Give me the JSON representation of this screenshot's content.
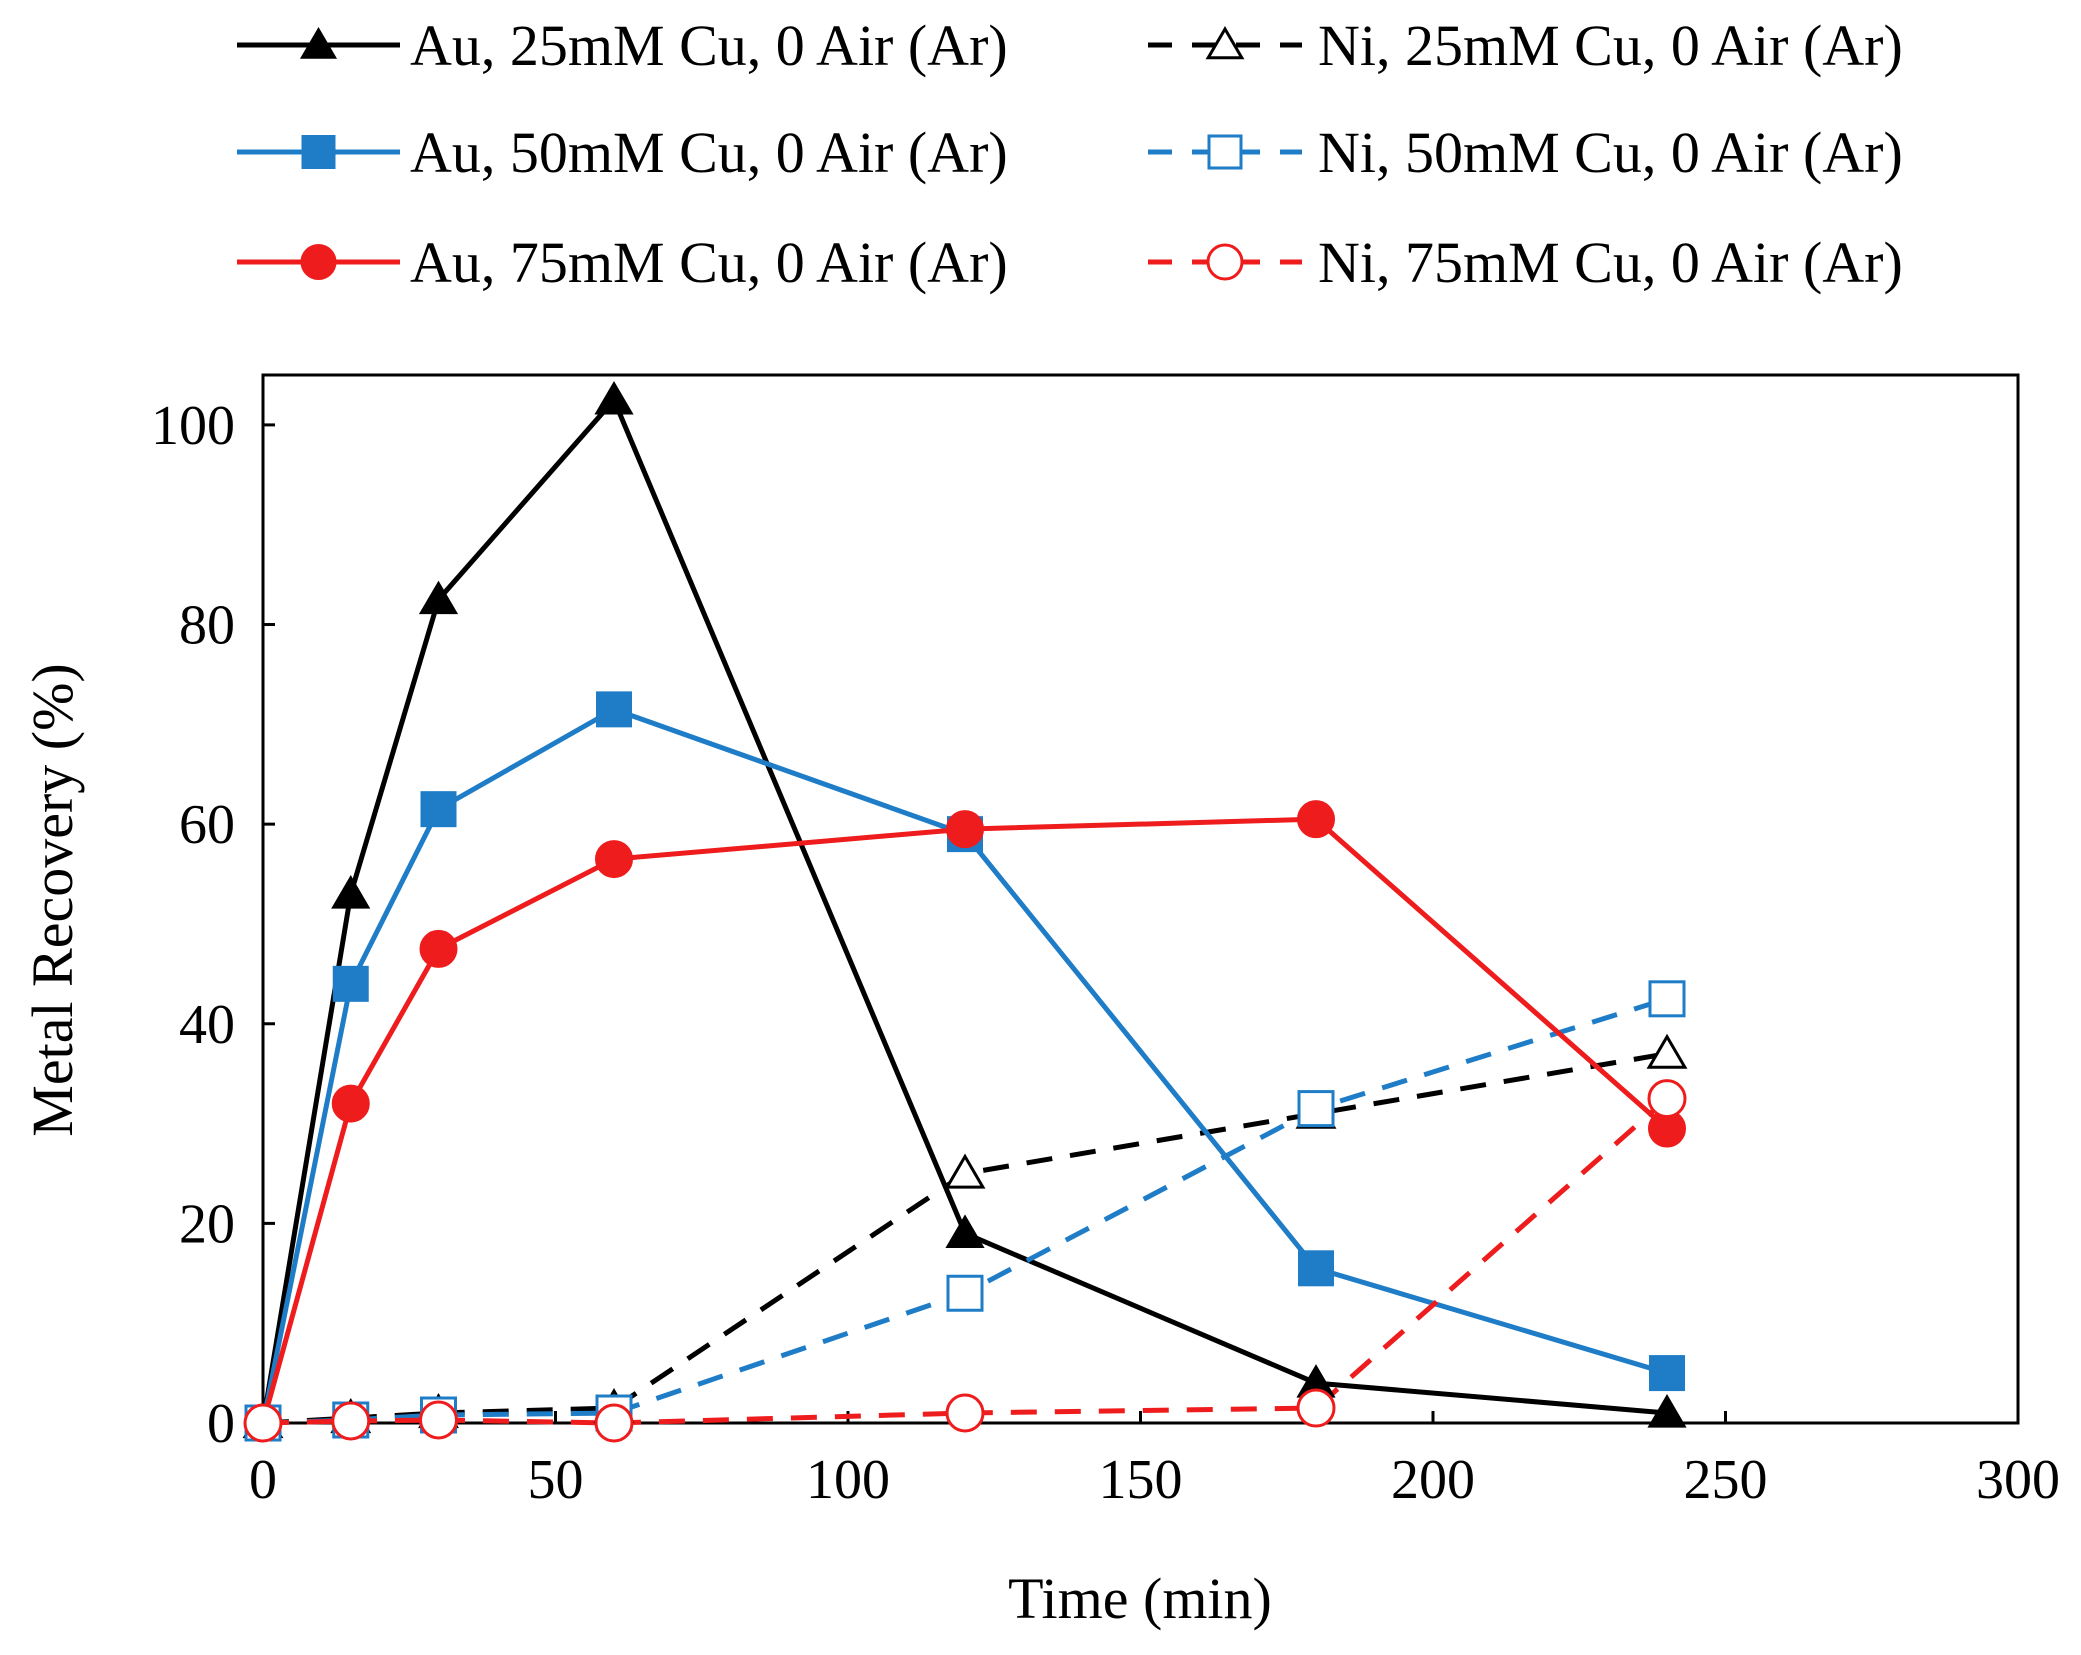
{
  "chart_data": {
    "type": "line",
    "title": "",
    "xlabel": "Time (min)",
    "ylabel": "Metal Recovery (%)",
    "xlim": [
      0,
      300
    ],
    "ylim": [
      0,
      105
    ],
    "xticks": [
      0,
      50,
      100,
      150,
      200,
      250,
      300
    ],
    "yticks": [
      0,
      20,
      40,
      60,
      80,
      100
    ],
    "grid": false,
    "legend_position": "top",
    "series": [
      {
        "name": "Au, 25mM Cu, 0 Air (Ar)",
        "color": "#000000",
        "dash": "solid",
        "marker": "triangle",
        "filled": true,
        "x": [
          0,
          15,
          30,
          60,
          120,
          180,
          240
        ],
        "y": [
          0,
          53,
          82.5,
          102.5,
          19,
          4,
          1
        ]
      },
      {
        "name": "Ni, 25mM Cu, 0 Air (Ar)",
        "color": "#000000",
        "dash": "dashed",
        "marker": "triangle",
        "filled": false,
        "x": [
          0,
          15,
          30,
          60,
          120,
          180,
          240
        ],
        "y": [
          0,
          0.5,
          1,
          1.5,
          25,
          31,
          37
        ]
      },
      {
        "name": "Au, 50mM Cu, 0 Air (Ar)",
        "color": "#1F7DC8",
        "dash": "solid",
        "marker": "square",
        "filled": true,
        "x": [
          0,
          15,
          30,
          60,
          120,
          180,
          240
        ],
        "y": [
          0,
          44,
          61.5,
          71.5,
          59,
          15.5,
          5
        ]
      },
      {
        "name": "Ni, 50mM Cu, 0 Air (Ar)",
        "color": "#1F7DC8",
        "dash": "dashed",
        "marker": "square",
        "filled": false,
        "x": [
          0,
          15,
          30,
          60,
          120,
          180,
          240
        ],
        "y": [
          0,
          0.3,
          0.8,
          1,
          13,
          31.5,
          42.5
        ]
      },
      {
        "name": "Au, 75mM Cu, 0 Air (Ar)",
        "color": "#EE1C1C",
        "dash": "solid",
        "marker": "circle",
        "filled": true,
        "x": [
          0,
          15,
          30,
          60,
          120,
          180,
          240
        ],
        "y": [
          0,
          32,
          47.5,
          56.5,
          59.5,
          60.5,
          29.5
        ]
      },
      {
        "name": "Ni, 75mM Cu, 0 Air (Ar)",
        "color": "#EE1C1C",
        "dash": "dashed",
        "marker": "circle",
        "filled": false,
        "x": [
          0,
          15,
          30,
          60,
          120,
          180,
          240
        ],
        "y": [
          0,
          0.2,
          0.3,
          0,
          1,
          1.5,
          32.5
        ]
      }
    ]
  }
}
